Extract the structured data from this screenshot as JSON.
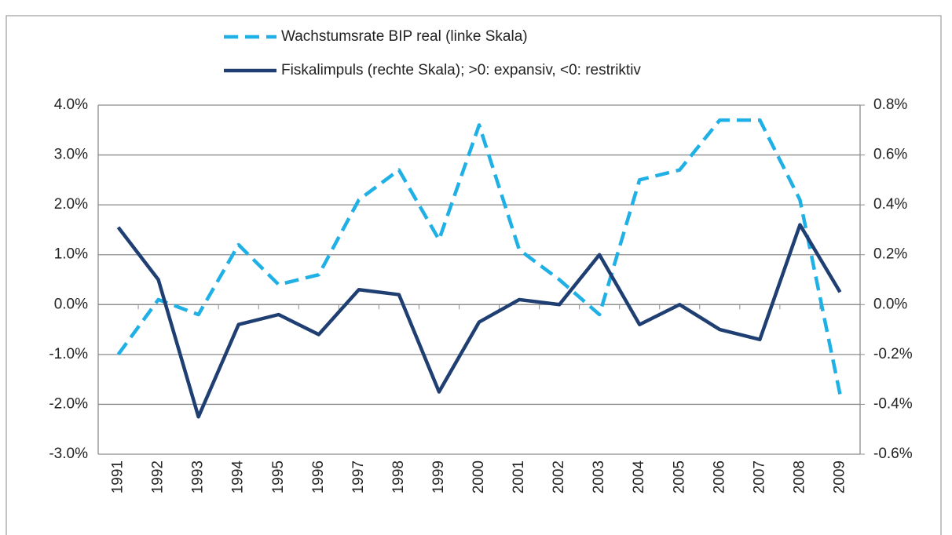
{
  "chart_data": {
    "type": "line",
    "categories": [
      "1991",
      "1992",
      "1993",
      "1994",
      "1995",
      "1996",
      "1997",
      "1998",
      "1999",
      "2000",
      "2001",
      "2002",
      "2003",
      "2004",
      "2005",
      "2006",
      "2007",
      "2008",
      "2009"
    ],
    "series": [
      {
        "name": "Wachstumsrate BIP real (linke Skala)",
        "color": "#1fb0e6",
        "dashed": true,
        "values": [
          -1.0,
          0.1,
          -0.2,
          1.2,
          0.4,
          0.6,
          2.1,
          2.7,
          1.3,
          3.6,
          1.1,
          0.5,
          -0.2,
          2.5,
          2.7,
          3.7,
          3.7,
          2.1,
          -1.8
        ]
      },
      {
        "name": "Fiskalimpuls (rechte Skala); >0: expansiv, <0: restriktiv",
        "color": "#1f3f73",
        "dashed": false,
        "axis": "y2",
        "values": [
          0.31,
          0.1,
          -0.45,
          -0.08,
          -0.04,
          -0.12,
          0.06,
          0.04,
          -0.35,
          -0.07,
          0.02,
          0.0,
          0.2,
          -0.08,
          0.0,
          -0.1,
          -0.14,
          0.32,
          0.05
        ]
      }
    ],
    "ylim": [
      -3,
      4
    ],
    "yticks": [
      {
        "value": 4,
        "label": "4.0%"
      },
      {
        "value": 3,
        "label": "3.0%"
      },
      {
        "value": 2,
        "label": "2.0%"
      },
      {
        "value": 1,
        "label": "1.0%"
      },
      {
        "value": 0,
        "label": "0.0%"
      },
      {
        "value": -1,
        "label": "-1.0%"
      },
      {
        "value": -2,
        "label": "-2.0%"
      },
      {
        "value": -3,
        "label": "-3.0%"
      }
    ],
    "y2lim": [
      -0.6,
      0.8
    ],
    "y2ticks": [
      {
        "value": 0.8,
        "label": "0.8%"
      },
      {
        "value": 0.6,
        "label": "0.6%"
      },
      {
        "value": 0.4,
        "label": "0.4%"
      },
      {
        "value": 0.2,
        "label": "0.2%"
      },
      {
        "value": 0,
        "label": "0.0%"
      },
      {
        "value": -0.2,
        "label": "-0.2%"
      },
      {
        "value": -0.4,
        "label": "-0.4%"
      },
      {
        "value": -0.6,
        "label": "-0.6%"
      }
    ],
    "grid": true,
    "legend": "top"
  }
}
